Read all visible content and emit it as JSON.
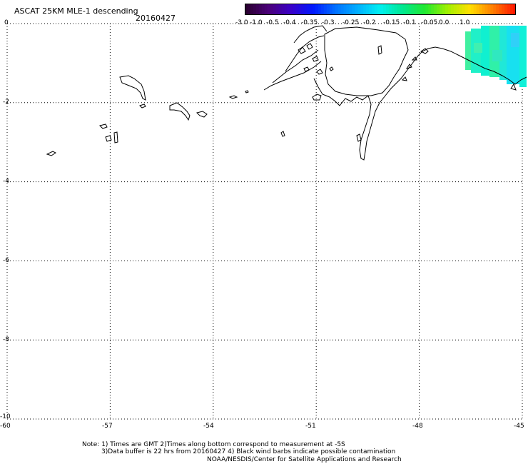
{
  "header": {
    "title": "ASCAT 25KM MLE-1 descending",
    "date": "20160427"
  },
  "colorbar": {
    "labels": [
      "-3.0",
      "-1.0",
      "-0.5",
      "-0.4",
      "-0.35",
      "-0.3",
      "-0.25",
      "-0.2",
      "-0.15",
      "-0.1",
      "-0.05",
      "0.0",
      "1.0"
    ],
    "colors": [
      "#2a0030",
      "#4a0078",
      "#3a00c8",
      "#0018ff",
      "#0070ff",
      "#00b0ff",
      "#00f0f0",
      "#00e890",
      "#20e830",
      "#a0f000",
      "#ffe000",
      "#ff8000",
      "#ff1800"
    ]
  },
  "axes": {
    "y_ticks": [
      "0",
      "-2",
      "-4",
      "-6",
      "-8",
      "-10"
    ],
    "x_ticks": [
      "-60",
      "-57",
      "-54",
      "-51",
      "-48",
      "-45"
    ],
    "xlim": [
      -60,
      -45
    ],
    "ylim": [
      -10,
      0
    ],
    "grid": true
  },
  "notes": {
    "line1": "Note: 1) Times are GMT 2)Times along bottom correspond to measurement at -5S",
    "line2": "3)Data buffer is 22 hrs from 20160427 4) Black wind barbs indicate possible contamination",
    "line3": "NOAA/NESDIS/Center for Satellite Applications and Research"
  }
}
